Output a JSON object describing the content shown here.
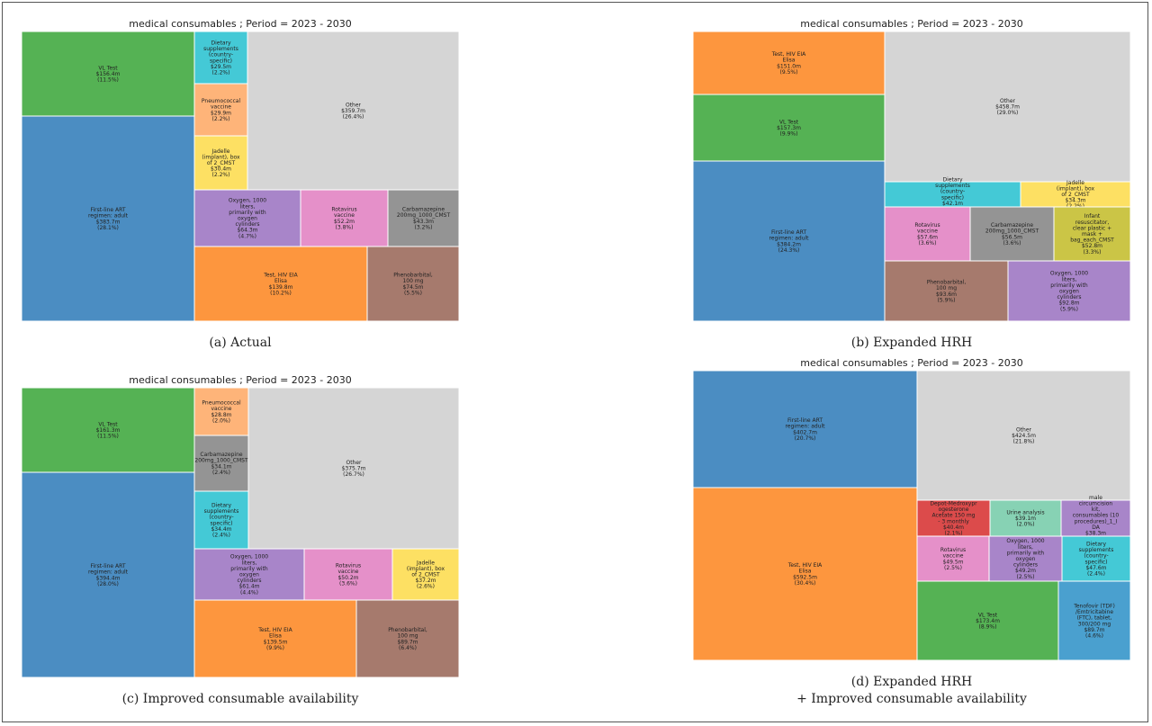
{
  "chart_data": [
    {
      "type": "treemap",
      "panel": "a",
      "title": "medical consumables ; Period = 2023 - 2030",
      "caption": [
        "(a) Actual"
      ],
      "cells": [
        {
          "lines": [
            "VL Test",
            "$156.4m",
            "(11.5%)"
          ],
          "color": "#55b254"
        },
        {
          "lines": [
            "First-line ART",
            "regimen: adult",
            "$383.7m",
            "(28.1%)"
          ],
          "color": "#4b8dc2"
        },
        {
          "lines": [
            "Dietary",
            "supplements",
            "(country-",
            "specific)",
            "$29.5m",
            "(2.2%)"
          ],
          "color": "#44c9d6"
        },
        {
          "lines": [
            "Pneumococcal",
            "vaccine",
            "$29.9m",
            "(2.2%)"
          ],
          "color": "#feb479"
        },
        {
          "lines": [
            "Jadelle",
            "(implant), box",
            "of 2_CMST",
            "$30.4m",
            "(2.2%)"
          ],
          "color": "#fde063"
        },
        {
          "lines": [
            "Other",
            "$359.7m",
            "(26.4%)"
          ],
          "color": "#d5d5d5"
        },
        {
          "lines": [
            "Oxygen, 1000",
            "liters,",
            "primarily with",
            "oxygen",
            "cylinders",
            "$64.3m",
            "(4.7%)"
          ],
          "color": "#a885c9"
        },
        {
          "lines": [
            "Rotavirus",
            "vaccine",
            "$52.2m",
            "(3.8%)"
          ],
          "color": "#e590c9"
        },
        {
          "lines": [
            "Carbamazepine",
            "200mg_1000_CMST",
            "$43.3m",
            "(3.2%)"
          ],
          "color": "#949494"
        },
        {
          "lines": [
            "Test, HIV EIA",
            "Elisa",
            "$139.8m",
            "(10.2%)"
          ],
          "color": "#fd963e"
        },
        {
          "lines": [
            "Phenobarbital,",
            "100 mg",
            "$74.5m",
            "(5.5%)"
          ],
          "color": "#a67a6d"
        }
      ]
    },
    {
      "type": "treemap",
      "panel": "b",
      "title": "medical consumables ; Period = 2023 - 2030",
      "caption": [
        "(b) Expanded HRH"
      ],
      "cells": [
        {
          "lines": [
            "Test, HIV EIA",
            "Elisa",
            "$151.0m",
            "(9.5%)"
          ],
          "color": "#fd963e"
        },
        {
          "lines": [
            "VL Test",
            "$157.3m",
            "(9.9%)"
          ],
          "color": "#55b254"
        },
        {
          "lines": [
            "First-line ART",
            "regimen: adult",
            "$384.2m",
            "(24.3%)"
          ],
          "color": "#4b8dc2"
        },
        {
          "lines": [
            "Other",
            "$458.7m",
            "(29.0%)"
          ],
          "color": "#d5d5d5"
        },
        {
          "lines": [
            "Dietary",
            "supplements",
            "(country-",
            "specific)",
            "$42.1m",
            "(2.7%)"
          ],
          "color": "#44c9d6"
        },
        {
          "lines": [
            "Jadelle",
            "(implant), box",
            "of 2_CMST",
            "$34.3m",
            "(2.2%)"
          ],
          "color": "#fde063"
        },
        {
          "lines": [
            "Rotavirus",
            "vaccine",
            "$57.6m",
            "(3.6%)"
          ],
          "color": "#e590c9"
        },
        {
          "lines": [
            "Carbamazepine",
            "200mg_1000_CMST",
            "$56.5m",
            "(3.6%)"
          ],
          "color": "#949494"
        },
        {
          "lines": [
            "Infant",
            "resuscitator,",
            "clear plastic +",
            "mask +",
            "bag_each_CMST",
            "$52.8m",
            "(3.3%)"
          ],
          "color": "#cbc546"
        },
        {
          "lines": [
            "Phenobarbital,",
            "100 mg",
            "$93.6m",
            "(5.9%)"
          ],
          "color": "#a67a6d"
        },
        {
          "lines": [
            "Oxygen, 1000",
            "liters,",
            "primarily with",
            "oxygen",
            "cylinders",
            "$92.8m",
            "(5.9%)"
          ],
          "color": "#a885c9"
        }
      ]
    },
    {
      "type": "treemap",
      "panel": "c",
      "title": "medical consumables ; Period = 2023 - 2030",
      "caption": [
        "(c) Improved consumable availability"
      ],
      "cells": [
        {
          "lines": [
            "VL Test",
            "$161.3m",
            "(11.5%)"
          ],
          "color": "#55b254"
        },
        {
          "lines": [
            "First-line ART",
            "regimen: adult",
            "$394.4m",
            "(28.0%)"
          ],
          "color": "#4b8dc2"
        },
        {
          "lines": [
            "Pneumococcal",
            "vaccine",
            "$28.8m",
            "(2.0%)"
          ],
          "color": "#feb479"
        },
        {
          "lines": [
            "Carbamazepine",
            "200mg_1000_CMST",
            "$34.1m",
            "(2.4%)"
          ],
          "color": "#949494"
        },
        {
          "lines": [
            "Dietary",
            "supplements",
            "(country-",
            "specific)",
            "$34.4m",
            "(2.4%)"
          ],
          "color": "#44c9d6"
        },
        {
          "lines": [
            "Other",
            "$375.7m",
            "(26.7%)"
          ],
          "color": "#d5d5d5"
        },
        {
          "lines": [
            "Oxygen, 1000",
            "liters,",
            "primarily with",
            "oxygen",
            "cylinders",
            "$61.4m",
            "(4.4%)"
          ],
          "color": "#a885c9"
        },
        {
          "lines": [
            "Rotavirus",
            "vaccine",
            "$50.2m",
            "(3.6%)"
          ],
          "color": "#e590c9"
        },
        {
          "lines": [
            "Jadelle",
            "(implant), box",
            "of 2_CMST",
            "$37.2m",
            "(2.6%)"
          ],
          "color": "#fde063"
        },
        {
          "lines": [
            "Test, HIV EIA",
            "Elisa",
            "$139.5m",
            "(9.9%)"
          ],
          "color": "#fd963e"
        },
        {
          "lines": [
            "Phenobarbital,",
            "100 mg",
            "$89.7m",
            "(6.4%)"
          ],
          "color": "#a67a6d"
        }
      ]
    },
    {
      "type": "treemap",
      "panel": "d",
      "title": "medical consumables ; Period = 2023 - 2030",
      "caption": [
        "(d) Expanded HRH",
        "+ Improved consumable availability"
      ],
      "cells": [
        {
          "lines": [
            "First-line ART",
            "regimen: adult",
            "$402.7m",
            "(20.7%)"
          ],
          "color": "#4b8dc2"
        },
        {
          "lines": [
            "Test, HIV EIA",
            "Elisa",
            "$592.5m",
            "(30.4%)"
          ],
          "color": "#fd963e"
        },
        {
          "lines": [
            "Other",
            "$424.5m",
            "(21.8%)"
          ],
          "color": "#d5d5d5"
        },
        {
          "lines": [
            "Depot-Medroxypr",
            "ogesterone",
            "Acetate 150 mg",
            "- 3 monthly",
            "$40.4m",
            "(2.1%)"
          ],
          "color": "#dc4b4b"
        },
        {
          "lines": [
            "Urine analysis",
            "$39.1m",
            "(2.0%)"
          ],
          "color": "#87d2b4"
        },
        {
          "lines": [
            "male",
            "circumcision",
            "kit,",
            "consumables (10",
            "procedures)_1_I",
            "DA",
            "$38.3m",
            "(2.0%)"
          ],
          "color": "#a885c9"
        },
        {
          "lines": [
            "Rotavirus",
            "vaccine",
            "$49.5m",
            "(2.5%)"
          ],
          "color": "#e590c9"
        },
        {
          "lines": [
            "Oxygen, 1000",
            "liters,",
            "primarily with",
            "oxygen",
            "cylinders",
            "$49.2m",
            "(2.5%)"
          ],
          "color": "#a885c9"
        },
        {
          "lines": [
            "Dietary",
            "supplements",
            "(country-",
            "specific)",
            "$47.6m",
            "(2.4%)"
          ],
          "color": "#44c9d6"
        },
        {
          "lines": [
            "VL Test",
            "$173.4m",
            "(8.9%)"
          ],
          "color": "#55b254"
        },
        {
          "lines": [
            "Tenofovir (TDF)",
            "/Emtricitabine",
            "(FTC), tablet,",
            "300/200 mg",
            "$89.7m",
            "(4.6%)"
          ],
          "color": "#4aa0cf"
        }
      ]
    }
  ]
}
